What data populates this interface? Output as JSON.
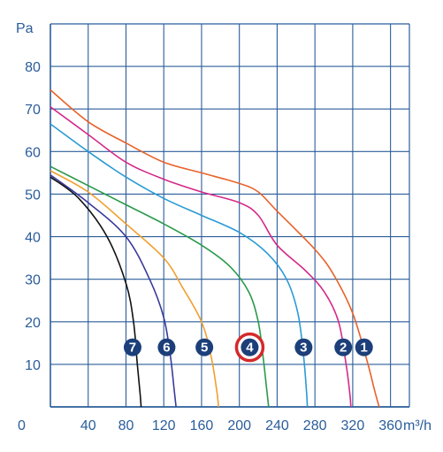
{
  "chart_data": {
    "type": "line",
    "xlabel": "m³/h",
    "ylabel": "Pa",
    "xlim": [
      0,
      380
    ],
    "ylim": [
      0,
      90
    ],
    "xticks": [
      40,
      80,
      120,
      160,
      200,
      240,
      280,
      320,
      360
    ],
    "yticks": [
      10,
      20,
      30,
      40,
      50,
      60,
      70,
      80
    ],
    "origin_label": "0",
    "grid": true,
    "colors": {
      "grid": "#2a5d9a",
      "text": "#2a5d9a",
      "badge": "#1c3f7a",
      "highlight": "#d42a2a"
    },
    "highlight_curve": "4",
    "series": [
      {
        "name": "1",
        "color": "#e8622a",
        "label_at": [
          332,
          14
        ],
        "points": [
          [
            0,
            74.5
          ],
          [
            40,
            67
          ],
          [
            80,
            62
          ],
          [
            120,
            57.5
          ],
          [
            160,
            55
          ],
          [
            200,
            52.5
          ],
          [
            220,
            50.5
          ],
          [
            240,
            46
          ],
          [
            280,
            37
          ],
          [
            300,
            31
          ],
          [
            320,
            22
          ],
          [
            335,
            11
          ],
          [
            343,
            4
          ],
          [
            348,
            0
          ]
        ]
      },
      {
        "name": "2",
        "color": "#d42a8a",
        "label_at": [
          310,
          14
        ],
        "points": [
          [
            0,
            70.5
          ],
          [
            40,
            64
          ],
          [
            80,
            57.5
          ],
          [
            120,
            53.5
          ],
          [
            160,
            50.5
          ],
          [
            200,
            48
          ],
          [
            220,
            45
          ],
          [
            240,
            38
          ],
          [
            270,
            32
          ],
          [
            290,
            27
          ],
          [
            305,
            20
          ],
          [
            313,
            10
          ],
          [
            317,
            3
          ],
          [
            318,
            0
          ]
        ]
      },
      {
        "name": "3",
        "color": "#2a9ad4",
        "label_at": [
          268,
          14
        ],
        "points": [
          [
            0,
            66.5
          ],
          [
            40,
            60
          ],
          [
            80,
            54
          ],
          [
            120,
            49
          ],
          [
            160,
            45
          ],
          [
            200,
            41
          ],
          [
            230,
            36
          ],
          [
            250,
            30
          ],
          [
            262,
            22
          ],
          [
            268,
            12
          ],
          [
            271,
            4
          ],
          [
            272,
            0
          ]
        ]
      },
      {
        "name": "4",
        "color": "#2a9a4a",
        "label_at": [
          211,
          14
        ],
        "points": [
          [
            0,
            56.5
          ],
          [
            40,
            52
          ],
          [
            80,
            47.5
          ],
          [
            120,
            43
          ],
          [
            160,
            38
          ],
          [
            190,
            33
          ],
          [
            210,
            27
          ],
          [
            220,
            20
          ],
          [
            225,
            12
          ],
          [
            229,
            4
          ],
          [
            231,
            0
          ]
        ]
      },
      {
        "name": "5",
        "color": "#f0a030",
        "label_at": [
          163,
          14
        ],
        "points": [
          [
            0,
            55.5
          ],
          [
            40,
            50.5
          ],
          [
            80,
            43
          ],
          [
            120,
            35
          ],
          [
            140,
            28
          ],
          [
            160,
            20
          ],
          [
            170,
            12
          ],
          [
            176,
            4
          ],
          [
            178,
            0
          ]
        ]
      },
      {
        "name": "6",
        "color": "#3a3a9a",
        "label_at": [
          123,
          14
        ],
        "points": [
          [
            0,
            54.5
          ],
          [
            40,
            48
          ],
          [
            80,
            40
          ],
          [
            105,
            30
          ],
          [
            120,
            21
          ],
          [
            127,
            12
          ],
          [
            131,
            4
          ],
          [
            133,
            0
          ]
        ]
      },
      {
        "name": "7",
        "color": "#111111",
        "label_at": [
          87,
          14
        ],
        "points": [
          [
            0,
            54
          ],
          [
            30,
            49
          ],
          [
            60,
            40
          ],
          [
            80,
            29
          ],
          [
            88,
            20
          ],
          [
            92,
            10
          ],
          [
            95,
            3
          ],
          [
            96,
            0
          ]
        ]
      }
    ]
  }
}
